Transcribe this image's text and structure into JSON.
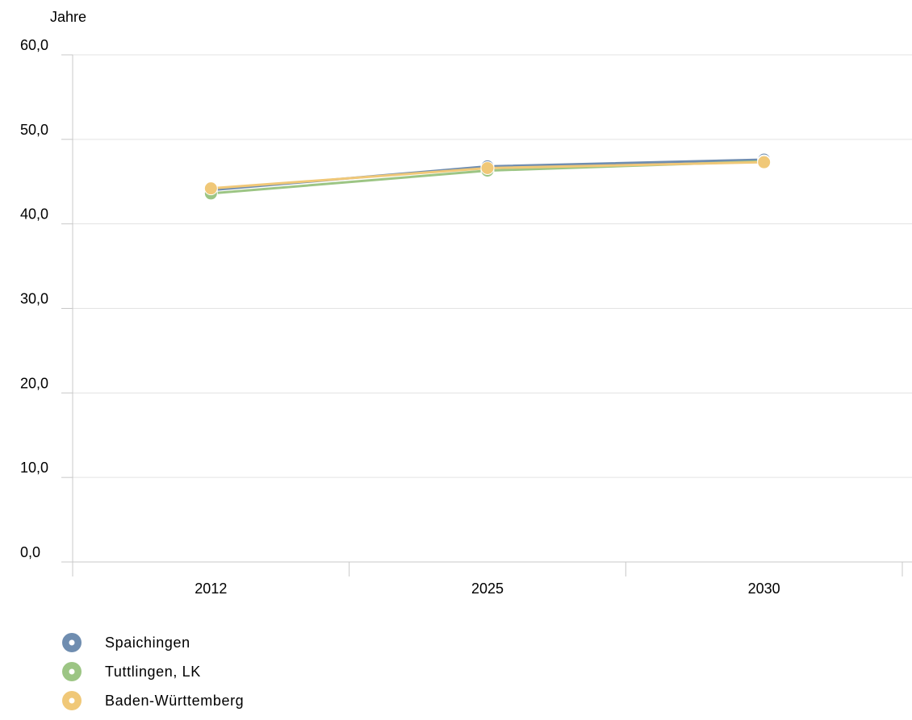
{
  "chart_data": {
    "type": "line",
    "ylabel": "Jahre",
    "categories": [
      "2012",
      "2025",
      "2030"
    ],
    "y_ticks": [
      "0,0",
      "10,0",
      "20,0",
      "30,0",
      "40,0",
      "50,0",
      "60,0"
    ],
    "ylim": [
      0,
      60
    ],
    "grid": true,
    "legend_position": "bottom-left",
    "series": [
      {
        "name": "Spaichingen",
        "color": "#6f8db0",
        "values": [
          44.0,
          46.8,
          47.6
        ]
      },
      {
        "name": "Tuttlingen, LK",
        "color": "#9cc584",
        "values": [
          43.6,
          46.3,
          47.4
        ]
      },
      {
        "name": "Baden-Württemberg",
        "color": "#f0c878",
        "values": [
          44.2,
          46.6,
          47.3
        ]
      }
    ]
  }
}
